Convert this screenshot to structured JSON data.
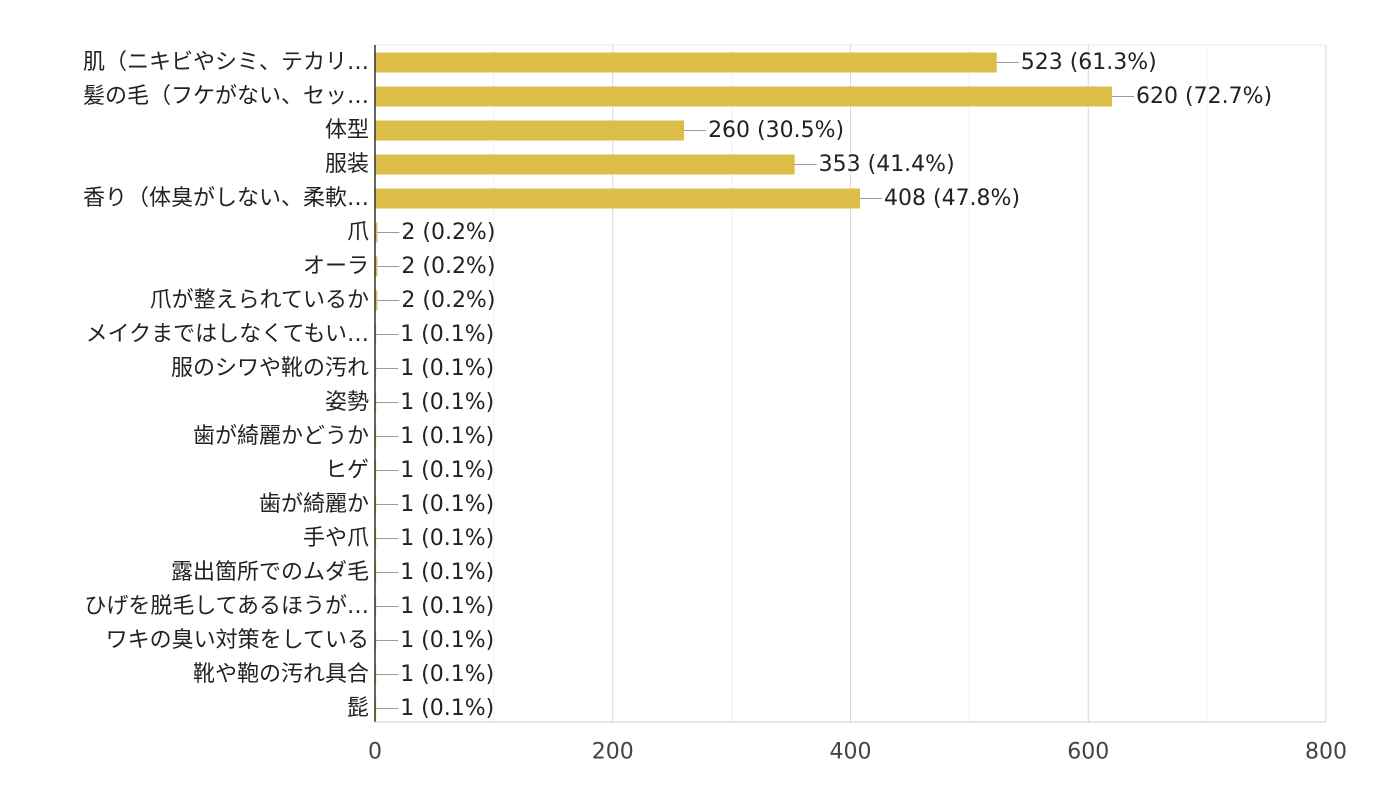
{
  "chart_data": {
    "type": "bar",
    "orientation": "horizontal",
    "bar_color": "#dbbd48",
    "categories": [
      "肌（ニキビやシミ、テカリ…",
      "髪の毛（フケがない、セッ…",
      "体型",
      "服装",
      "香り（体臭がしない、柔軟…",
      "爪",
      "オーラ",
      "爪が整えられているか",
      "メイクまではしなくてもい…",
      "服のシワや靴の汚れ",
      "姿勢",
      "歯が綺麗かどうか",
      "ヒゲ",
      "歯が綺麗か",
      "手や爪",
      "露出箇所でのムダ毛",
      "ひげを脱毛してあるほうが…",
      "ワキの臭い対策をしている",
      "靴や鞄の汚れ具合",
      "髭"
    ],
    "values": [
      523,
      620,
      260,
      353,
      408,
      2,
      2,
      2,
      1,
      1,
      1,
      1,
      1,
      1,
      1,
      1,
      1,
      1,
      1,
      1
    ],
    "data_labels": [
      "523 (61.3%)",
      "620 (72.7%)",
      "260 (30.5%)",
      "353 (41.4%)",
      "408 (47.8%)",
      "2 (0.2%)",
      "2 (0.2%)",
      "2 (0.2%)",
      "1 (0.1%)",
      "1 (0.1%)",
      "1 (0.1%)",
      "1 (0.1%)",
      "1 (0.1%)",
      "1 (0.1%)",
      "1 (0.1%)",
      "1 (0.1%)",
      "1 (0.1%)",
      "1 (0.1%)",
      "1 (0.1%)",
      "1 (0.1%)"
    ],
    "xlim": [
      0,
      800
    ],
    "xticks": [
      0,
      200,
      400,
      600,
      800
    ],
    "xtick_labels": [
      "0",
      "200",
      "400",
      "600",
      "800"
    ],
    "minor_gridlines": [
      100,
      300,
      500,
      700
    ],
    "grid": true,
    "title": "",
    "xlabel": "",
    "ylabel": ""
  }
}
